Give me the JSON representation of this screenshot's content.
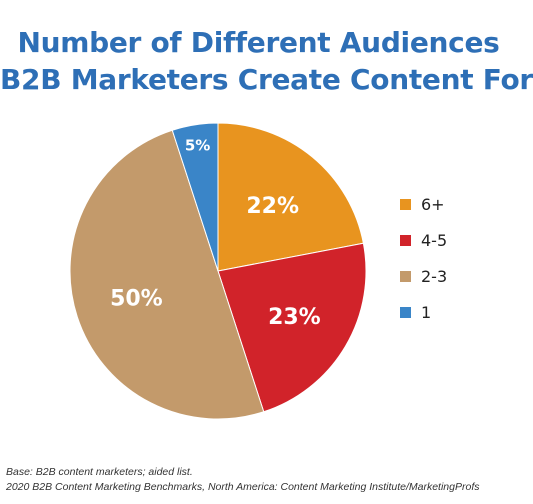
{
  "title_line1": "Number of Different Audiences",
  "title_line2": "B2B Marketers Create Content For",
  "chart_data": {
    "type": "pie",
    "title": "Number of Different Audiences B2B Marketers Create Content For",
    "categories": [
      "6+",
      "4-5",
      "2-3",
      "1"
    ],
    "values": [
      22,
      23,
      50,
      5
    ],
    "labels": [
      "22%",
      "23%",
      "50%",
      "5%"
    ],
    "colors": [
      "#e8941f",
      "#d1232a",
      "#c39a6b",
      "#3a85c8"
    ],
    "legend_position": "right"
  },
  "legend": [
    {
      "label": "6+",
      "color": "#e8941f"
    },
    {
      "label": "4-5",
      "color": "#d1232a"
    },
    {
      "label": "2-3",
      "color": "#c39a6b"
    },
    {
      "label": "1",
      "color": "#3a85c8"
    }
  ],
  "notes": {
    "base": "Base: B2B content marketers; aided list.",
    "source": "2020 B2B Content Marketing Benchmarks, North America: Content Marketing Institute/MarketingProfs"
  }
}
